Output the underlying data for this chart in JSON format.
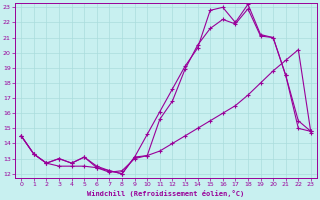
{
  "xlabel": "Windchill (Refroidissement éolien,°C)",
  "ylabel": "",
  "bg_color": "#c8f0f0",
  "line_color": "#990099",
  "grid_color": "#aadddd",
  "xmin": 0,
  "xmax": 23,
  "ymin": 12,
  "ymax": 23,
  "xticks": [
    0,
    1,
    2,
    3,
    4,
    5,
    6,
    7,
    8,
    9,
    10,
    11,
    12,
    13,
    14,
    15,
    16,
    17,
    18,
    19,
    20,
    21,
    22,
    23
  ],
  "yticks": [
    12,
    13,
    14,
    15,
    16,
    17,
    18,
    19,
    20,
    21,
    22,
    23
  ],
  "line1_x": [
    0,
    1,
    2,
    3,
    4,
    5,
    6,
    7,
    8,
    9,
    10,
    11,
    12,
    13,
    14,
    15,
    16,
    17,
    18,
    19,
    20,
    21,
    22,
    23
  ],
  "line1_y": [
    14.5,
    13.3,
    12.7,
    13.0,
    12.7,
    13.1,
    12.4,
    12.2,
    12.0,
    13.1,
    13.2,
    15.6,
    16.8,
    18.9,
    20.5,
    21.6,
    22.2,
    21.9,
    22.9,
    21.1,
    21.0,
    18.5,
    15.5,
    14.8
  ],
  "line2_x": [
    0,
    1,
    2,
    3,
    4,
    5,
    6,
    7,
    8,
    9,
    10,
    11,
    12,
    13,
    14,
    15,
    16,
    17,
    18,
    19,
    20,
    21,
    22,
    23
  ],
  "line2_y": [
    14.5,
    13.3,
    12.7,
    13.0,
    12.7,
    13.1,
    12.5,
    12.2,
    12.0,
    13.1,
    14.6,
    16.1,
    17.6,
    19.1,
    20.3,
    22.8,
    23.0,
    22.0,
    23.2,
    21.2,
    21.0,
    18.5,
    15.0,
    14.8
  ],
  "line3_x": [
    0,
    1,
    2,
    3,
    4,
    5,
    6,
    7,
    8,
    9,
    10,
    11,
    12,
    13,
    14,
    15,
    16,
    17,
    18,
    19,
    20,
    21,
    22,
    23
  ],
  "line3_y": [
    14.5,
    13.3,
    12.7,
    12.5,
    12.5,
    12.5,
    12.4,
    12.1,
    12.2,
    13.0,
    13.2,
    13.5,
    14.0,
    14.5,
    15.0,
    15.5,
    16.0,
    16.5,
    17.2,
    18.0,
    18.8,
    19.5,
    20.2,
    14.7
  ]
}
